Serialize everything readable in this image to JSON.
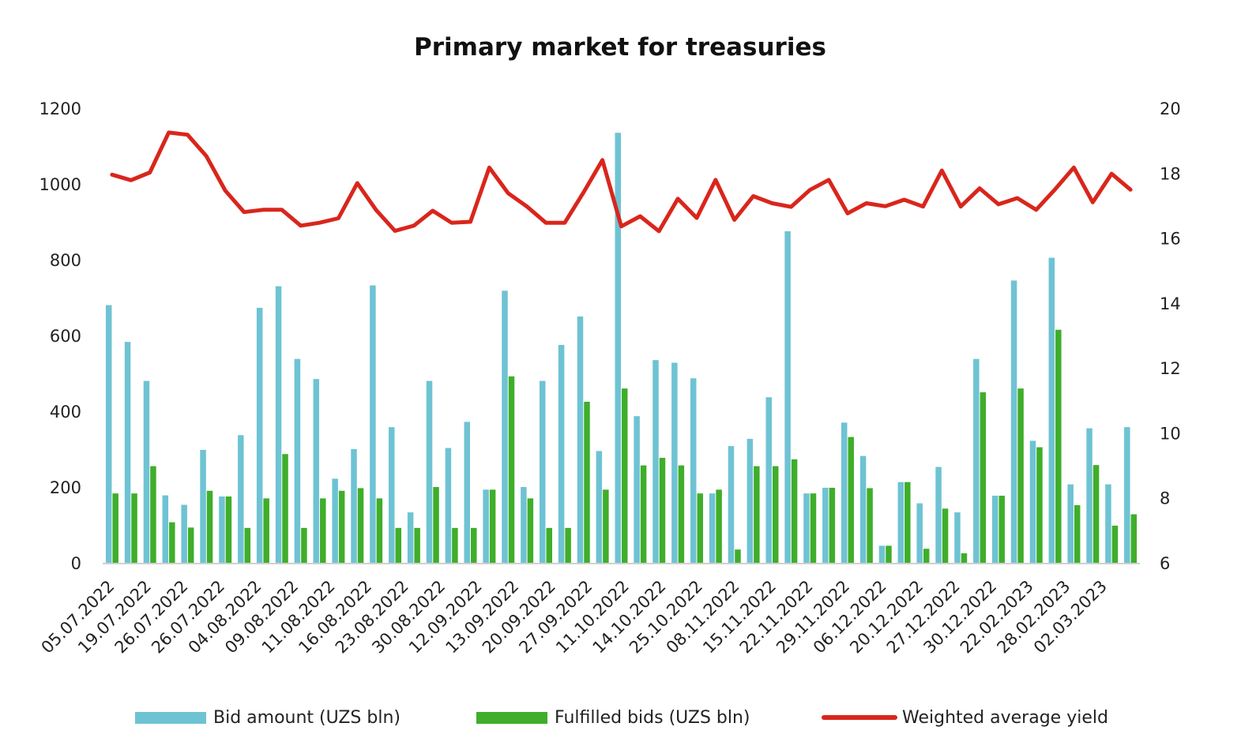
{
  "chart_data": {
    "type": "bar",
    "title": "Primary market for treasuries",
    "xlabel": "",
    "ylabel": "",
    "y2label": "",
    "ylim": [
      0,
      1200
    ],
    "y2lim": [
      6,
      20
    ],
    "yticks": [
      "0",
      "200",
      "400",
      "600",
      "800",
      "1000",
      "1200"
    ],
    "y2ticks": [
      "6",
      "8",
      "10",
      "12",
      "14",
      "16",
      "18",
      "20"
    ],
    "grid": false,
    "legend_position": "bottom",
    "tick_labels": [
      "05.07.2022",
      "19.07.2022",
      "26.07.2022",
      "26.07.2022",
      "04.08.2022",
      "09.08.2022",
      "11.08.2022",
      "16.08.2022",
      "23.08.2022",
      "30.08.2022",
      "12.09.2022",
      "13.09.2022",
      "20.09.2022",
      "27.09.2022",
      "11.10.2022",
      "14.10.2022",
      "25.10.2022",
      "08.11.2022",
      "15.11.2022",
      "22.11.2022",
      "29.11.2022",
      "06.12.2022",
      "20.12.2022",
      "27.12.2022",
      "30.12.2022",
      "22.02.2023",
      "28.02.2023",
      "02.03.2023"
    ],
    "series": [
      {
        "name": "Bid amount (UZS bln)",
        "type": "bar",
        "axis": "left",
        "color": "#6EC3D3",
        "values": [
          680,
          583,
          480,
          178,
          153,
          298,
          175,
          337,
          673,
          730,
          538,
          485,
          222,
          300,
          732,
          358,
          133,
          480,
          303,
          372,
          193,
          718,
          200,
          480,
          575,
          650,
          295,
          1135,
          387,
          535,
          528,
          487,
          183,
          308,
          327,
          437,
          875,
          183,
          198,
          370,
          282,
          45,
          213,
          157,
          253,
          133,
          538,
          177,
          745,
          322,
          805,
          207,
          355,
          207,
          358
        ]
      },
      {
        "name": "Fulfilled bids (UZS bln)",
        "type": "bar",
        "axis": "left",
        "color": "#3FAE2A",
        "values": [
          183,
          183,
          255,
          107,
          93,
          190,
          175,
          92,
          170,
          287,
          92,
          170,
          190,
          197,
          170,
          92,
          92,
          200,
          92,
          92,
          193,
          492,
          170,
          92,
          92,
          425,
          193,
          460,
          257,
          277,
          257,
          183,
          193,
          35,
          255,
          255,
          273,
          183,
          198,
          332,
          197,
          45,
          213,
          37,
          143,
          25,
          450,
          177,
          460,
          305,
          615,
          152,
          258,
          98,
          128
        ]
      },
      {
        "name": "Weighted average yield",
        "type": "line",
        "axis": "right",
        "color": "#D9261C",
        "values": [
          17.95,
          17.78,
          18.02,
          19.25,
          19.18,
          18.52,
          17.46,
          16.8,
          16.87,
          16.87,
          16.38,
          16.47,
          16.61,
          17.69,
          16.86,
          16.22,
          16.38,
          16.84,
          16.47,
          16.5,
          18.17,
          17.38,
          16.97,
          16.47,
          16.47,
          17.41,
          18.4,
          16.36,
          16.67,
          16.21,
          17.21,
          16.62,
          17.79,
          16.56,
          17.29,
          17.07,
          16.96,
          17.48,
          17.79,
          16.76,
          17.07,
          16.98,
          17.18,
          16.97,
          18.08,
          16.97,
          17.53,
          17.04,
          17.23,
          16.87,
          17.5,
          18.17,
          17.1,
          17.98,
          17.49
        ]
      }
    ]
  }
}
